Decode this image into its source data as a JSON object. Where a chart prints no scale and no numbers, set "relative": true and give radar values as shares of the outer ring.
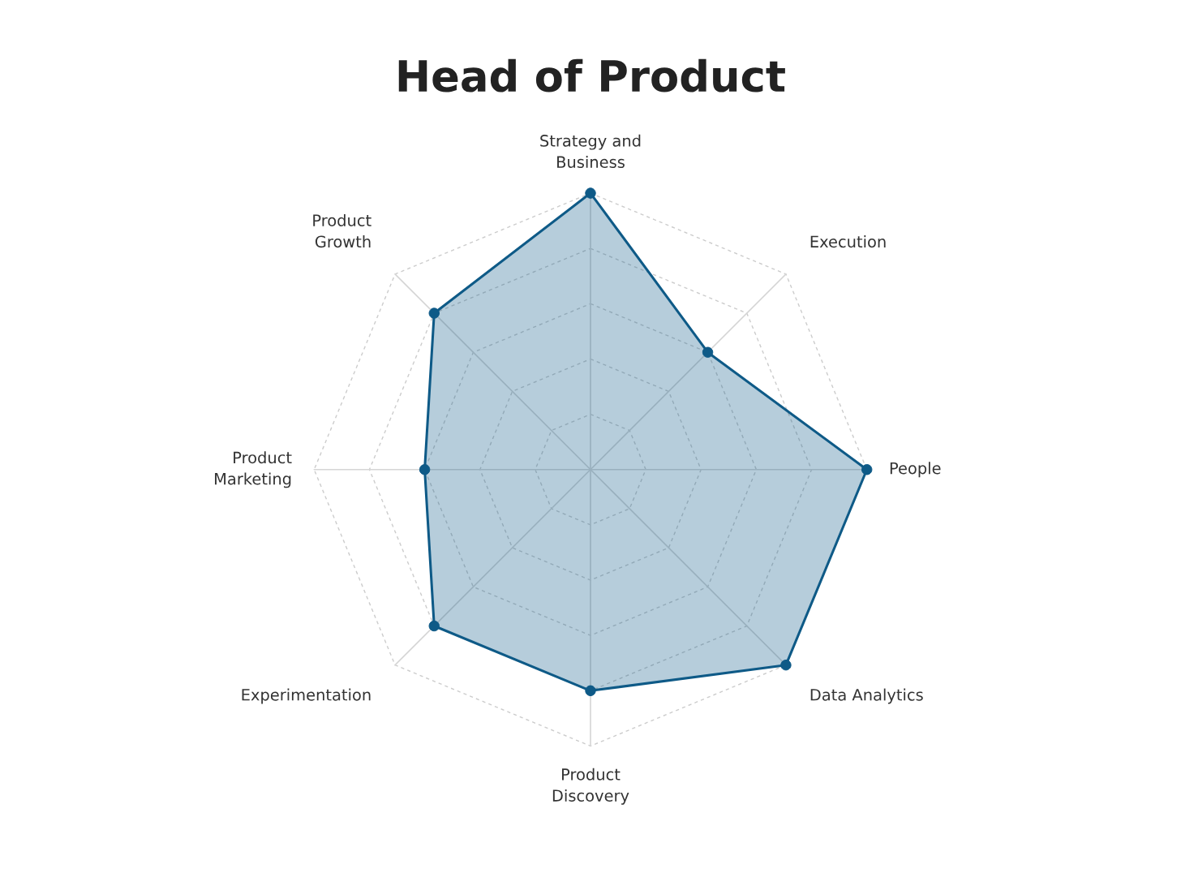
{
  "chart_data": {
    "type": "radar",
    "title": "Head of Product",
    "relative": true,
    "grid": true,
    "marker": "circle",
    "legend": false,
    "categories": [
      "Strategy and\nBusiness",
      "Execution",
      "People",
      "Data Analytics",
      "Product\nDiscovery",
      "Experimentation",
      "Product\nMarketing",
      "Product\nGrowth"
    ],
    "series": [
      {
        "color": "#0e5a87",
        "values": [
          1.0,
          0.6,
          1.0,
          1.0,
          0.8,
          0.8,
          0.6,
          0.8
        ]
      }
    ]
  }
}
